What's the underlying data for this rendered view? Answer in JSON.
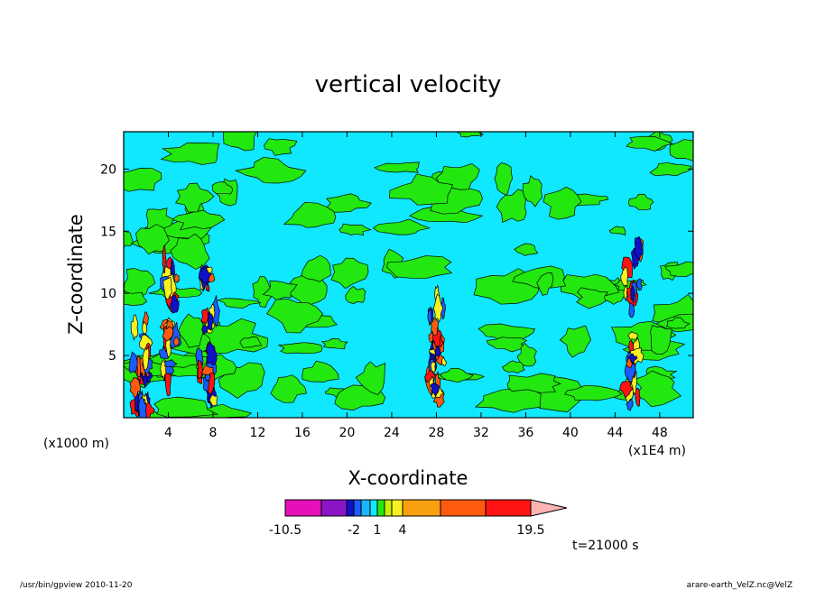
{
  "chart_data": {
    "type": "heatmap",
    "title": "vertical velocity",
    "xlabel": "X-coordinate",
    "ylabel": "Z-coordinate",
    "x_unit_left": "(x1000 m)",
    "x_unit_right": "(x1E4 m)",
    "xlim": [
      0,
      51
    ],
    "ylim": [
      0,
      23
    ],
    "x_ticks": [
      4,
      8,
      12,
      16,
      20,
      24,
      28,
      32,
      36,
      40,
      44,
      48
    ],
    "x_tick_labels": [
      "4",
      "8",
      "12",
      "16",
      "20",
      "24",
      "28",
      "32",
      "36",
      "40",
      "44",
      "48"
    ],
    "y_ticks": [
      5,
      10,
      15,
      20
    ],
    "y_tick_labels": [
      "5",
      "10",
      "15",
      "20"
    ],
    "colorbar": {
      "levels": [
        -10.5,
        -7,
        -3.5,
        -2,
        -1,
        0,
        1,
        2,
        3,
        4,
        7.5,
        11.5,
        15.5,
        19.5
      ],
      "tick_labels": [
        "-10.5",
        "-2",
        "1",
        "4",
        "19.5"
      ],
      "tick_values": [
        -10.5,
        -2,
        1,
        4,
        19.5
      ],
      "colors": [
        "#e610b8",
        "#8a16c8",
        "#1010c8",
        "#1a5cff",
        "#1ab4ff",
        "#10e8ff",
        "#22e810",
        "#c8f000",
        "#f8f020",
        "#f8a010",
        "#ff5a10",
        "#ff1414",
        "#ff7a7a",
        "#ffb4b4"
      ]
    },
    "background_fill": "#10e8ff",
    "cells": [
      {
        "x": [
          0,
          4
        ],
        "z": [
          0,
          23
        ],
        "band": "green"
      },
      {
        "x": [
          4,
          8
        ],
        "z": [
          12,
          23
        ],
        "band": "green"
      },
      {
        "x": [
          20,
          28
        ],
        "z": [
          8,
          23
        ],
        "band": "green"
      },
      {
        "x": [
          33,
          45
        ],
        "z": [
          0,
          23
        ],
        "band": "green"
      },
      {
        "x": [
          45,
          51
        ],
        "z": [
          0,
          23
        ],
        "band": "green"
      }
    ],
    "time_label": "t=21000 s"
  },
  "footer": {
    "left": "/usr/bin/gpview   2010-11-20",
    "right": "arare-earth_VelZ.nc@VelZ"
  }
}
